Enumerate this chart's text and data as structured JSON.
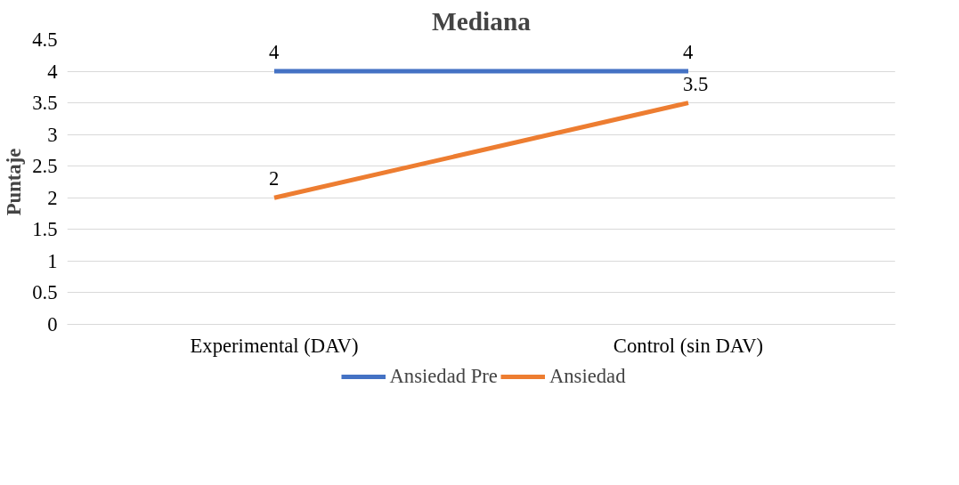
{
  "chart_data": {
    "type": "line",
    "title": "Mediana",
    "ylabel": "Puntaje",
    "categories": [
      "Experimental (DAV)",
      "Control (sin DAV)"
    ],
    "series": [
      {
        "name": "Ansiedad Pre",
        "color": "#4472c4",
        "values": [
          4,
          4
        ]
      },
      {
        "name": "Ansiedad",
        "color": "#ed7d31",
        "values": [
          2,
          3.5
        ]
      }
    ],
    "ylim": [
      0,
      4.5
    ],
    "yticks": [
      0,
      0.5,
      1,
      1.5,
      2,
      2.5,
      3,
      3.5,
      4,
      4.5
    ],
    "grid": "y",
    "legend": "bottom",
    "data_labels": true,
    "marker": "none",
    "line_style": "solid"
  }
}
